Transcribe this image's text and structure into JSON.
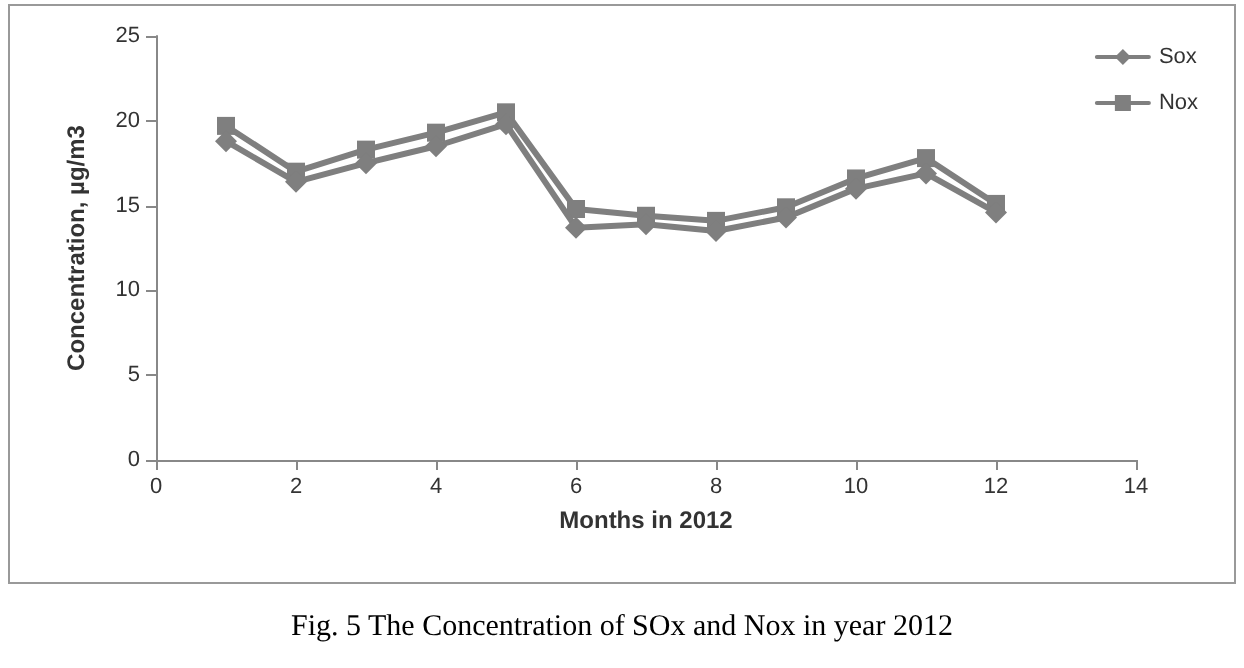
{
  "chart_data": {
    "type": "line",
    "title": "Fig. 5 The Concentration of SOx and Nox in year 2012",
    "xlabel": "Months in 2012",
    "ylabel": "Concentration, µg/m3",
    "x": [
      1,
      2,
      3,
      4,
      5,
      6,
      7,
      8,
      9,
      10,
      11,
      12
    ],
    "series": [
      {
        "name": "Sox",
        "color": "#7f7f7f",
        "marker": "diamond",
        "values": [
          18.8,
          16.4,
          17.5,
          18.5,
          19.8,
          13.7,
          13.9,
          13.5,
          14.3,
          16.0,
          16.9,
          14.6
        ]
      },
      {
        "name": "Nox",
        "color": "#7f7f7f",
        "marker": "square",
        "values": [
          19.7,
          17.0,
          18.3,
          19.3,
          20.5,
          14.8,
          14.4,
          14.1,
          14.9,
          16.6,
          17.8,
          15.1
        ]
      }
    ],
    "xlim": [
      0,
      14
    ],
    "xticks": [
      0,
      2,
      4,
      6,
      8,
      10,
      12,
      14
    ],
    "ylim": [
      0,
      25
    ],
    "yticks": [
      0,
      5,
      10,
      15,
      20,
      25
    ],
    "grid": false,
    "legend": "top right",
    "line_style": "solid"
  }
}
